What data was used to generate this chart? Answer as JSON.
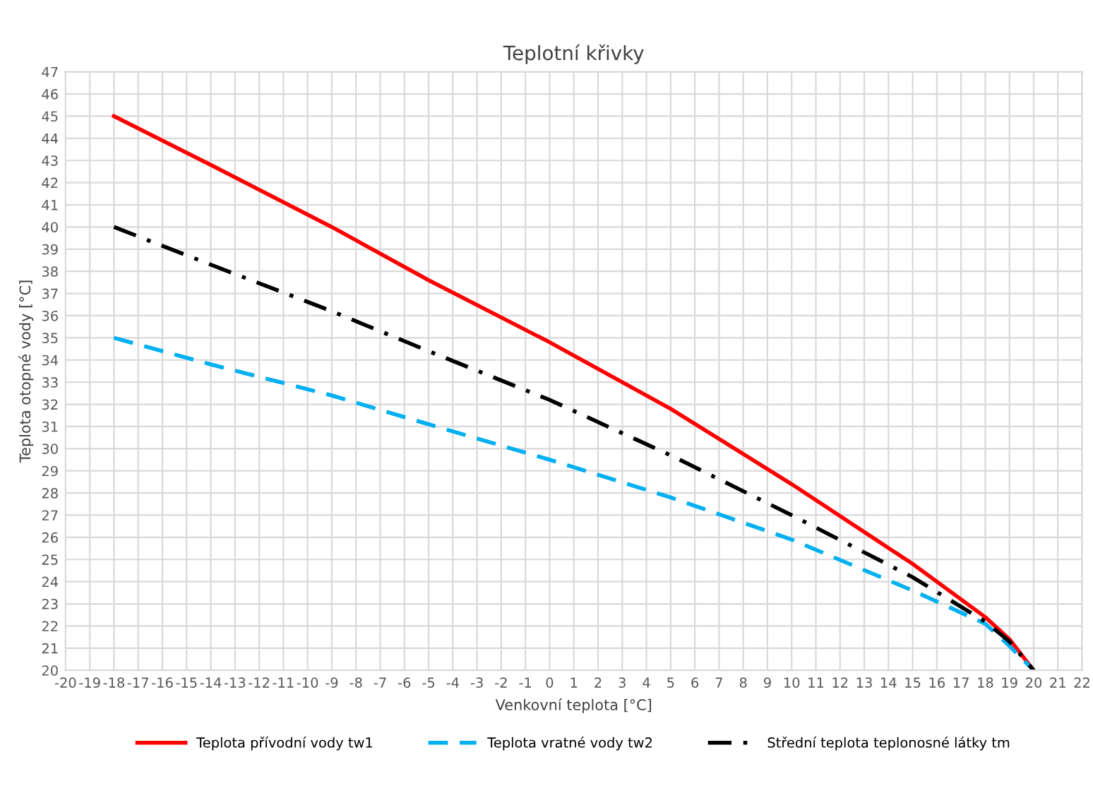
{
  "chart_data": {
    "type": "line",
    "title": "Teplotní křivky",
    "xlabel": "Venkovní teplota [°C]",
    "ylabel": "Teplota otopné vody [°C]",
    "x": [
      -18,
      -14,
      -9,
      -5,
      0,
      5,
      10,
      15,
      18,
      19,
      20
    ],
    "series": [
      {
        "name": "Teplota přívodní vody tw1",
        "color": "#ff0000",
        "line_style": "solid",
        "values": [
          45,
          42.8,
          40.0,
          37.6,
          34.8,
          31.8,
          28.4,
          24.8,
          22.4,
          21.4,
          20
        ]
      },
      {
        "name": "Teplota vratné vody tw2",
        "color": "#00b0f0",
        "line_style": "dashed",
        "values": [
          35,
          33.8,
          32.4,
          31.1,
          29.5,
          27.8,
          25.9,
          23.6,
          22.1,
          21.1,
          20
        ]
      },
      {
        "name": "Střední teplota teplonosné látky tm",
        "color": "#000000",
        "line_style": "dashdot",
        "values": [
          40,
          38.3,
          36.2,
          34.4,
          32.2,
          29.7,
          27.0,
          24.2,
          22.2,
          21.3,
          20
        ]
      }
    ],
    "xlim": [
      -20,
      22
    ],
    "xticks": [
      -20,
      -19,
      -18,
      -17,
      -16,
      -15,
      -14,
      -13,
      -12,
      -11,
      -10,
      -9,
      -8,
      -7,
      -6,
      -5,
      -4,
      -3,
      -2,
      -1,
      0,
      1,
      2,
      3,
      4,
      5,
      6,
      7,
      8,
      9,
      10,
      11,
      12,
      13,
      14,
      15,
      16,
      17,
      18,
      19,
      20,
      21,
      22
    ],
    "ylim": [
      20,
      47
    ],
    "yticks": [
      20,
      21,
      22,
      23,
      24,
      25,
      26,
      27,
      28,
      29,
      30,
      31,
      32,
      33,
      34,
      35,
      36,
      37,
      38,
      39,
      40,
      41,
      42,
      43,
      44,
      45,
      46,
      47
    ],
    "grid": true,
    "legend": "bottom",
    "marker": "none"
  }
}
